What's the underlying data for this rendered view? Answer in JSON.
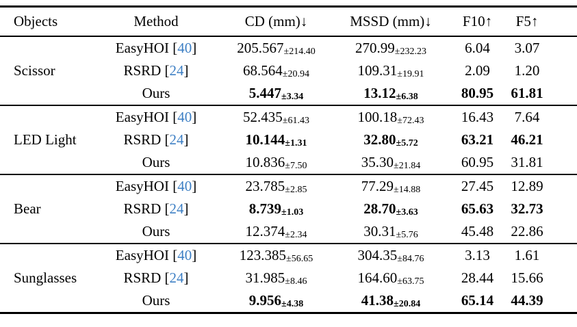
{
  "page": {
    "background": "#ffffff"
  },
  "colors": {
    "text": "#000000",
    "citation": "#3d7fc4",
    "rule": "#000000"
  },
  "table": {
    "headers": [
      "Objects",
      "Method",
      "CD (mm)↓",
      "MSSD (mm)↓",
      "F10↑",
      "F5↑"
    ],
    "cite_open": " [",
    "cite_close": "]",
    "groups": [
      {
        "object": "Scissor",
        "rows": [
          {
            "method": "EasyHOI",
            "cite": "40",
            "cd": "205.567",
            "cd_pm": "±214.40",
            "mssd": "270.99",
            "mssd_pm": "±232.23",
            "f10": "6.04",
            "f5": "3.07",
            "bold": false
          },
          {
            "method": "RSRD",
            "cite": "24",
            "cd": "68.564",
            "cd_pm": "±20.94",
            "mssd": "109.31",
            "mssd_pm": "±19.91",
            "f10": "2.09",
            "f5": "1.20",
            "bold": false
          },
          {
            "method": "Ours",
            "cite": "",
            "cd": "5.447",
            "cd_pm": "±3.34",
            "mssd": "13.12",
            "mssd_pm": "±6.38",
            "f10": "80.95",
            "f5": "61.81",
            "bold": true
          }
        ]
      },
      {
        "object": "LED Light",
        "rows": [
          {
            "method": "EasyHOI",
            "cite": "40",
            "cd": "52.435",
            "cd_pm": "±61.43",
            "mssd": "100.18",
            "mssd_pm": "±72.43",
            "f10": "16.43",
            "f5": "7.64",
            "bold": false
          },
          {
            "method": "RSRD",
            "cite": "24",
            "cd": "10.144",
            "cd_pm": "±1.31",
            "mssd": "32.80",
            "mssd_pm": "±5.72",
            "f10": "63.21",
            "f5": "46.21",
            "bold": true
          },
          {
            "method": "Ours",
            "cite": "",
            "cd": "10.836",
            "cd_pm": "±7.50",
            "mssd": "35.30",
            "mssd_pm": "±21.84",
            "f10": "60.95",
            "f5": "31.81",
            "bold": false
          }
        ]
      },
      {
        "object": "Bear",
        "rows": [
          {
            "method": "EasyHOI",
            "cite": "40",
            "cd": "23.785",
            "cd_pm": "±2.85",
            "mssd": "77.29",
            "mssd_pm": "±14.88",
            "f10": "27.45",
            "f5": "12.89",
            "bold": false
          },
          {
            "method": "RSRD",
            "cite": "24",
            "cd": "8.739",
            "cd_pm": "±1.03",
            "mssd": "28.70",
            "mssd_pm": "±3.63",
            "f10": "65.63",
            "f5": "32.73",
            "bold": true
          },
          {
            "method": "Ours",
            "cite": "",
            "cd": "12.374",
            "cd_pm": "±2.34",
            "mssd": "30.31",
            "mssd_pm": "±5.76",
            "f10": "45.48",
            "f5": "22.86",
            "bold": false
          }
        ]
      },
      {
        "object": "Sunglasses",
        "rows": [
          {
            "method": "EasyHOI",
            "cite": "40",
            "cd": "123.385",
            "cd_pm": "±56.65",
            "mssd": "304.35",
            "mssd_pm": "±84.76",
            "f10": "3.13",
            "f5": "1.61",
            "bold": false
          },
          {
            "method": "RSRD",
            "cite": "24",
            "cd": "31.985",
            "cd_pm": "±8.46",
            "mssd": "164.60",
            "mssd_pm": "±63.75",
            "f10": "28.44",
            "f5": "15.66",
            "bold": false
          },
          {
            "method": "Ours",
            "cite": "",
            "cd": "9.956",
            "cd_pm": "±4.38",
            "mssd": "41.38",
            "mssd_pm": "±20.84",
            "f10": "65.14",
            "f5": "44.39",
            "bold": true
          }
        ]
      }
    ]
  }
}
